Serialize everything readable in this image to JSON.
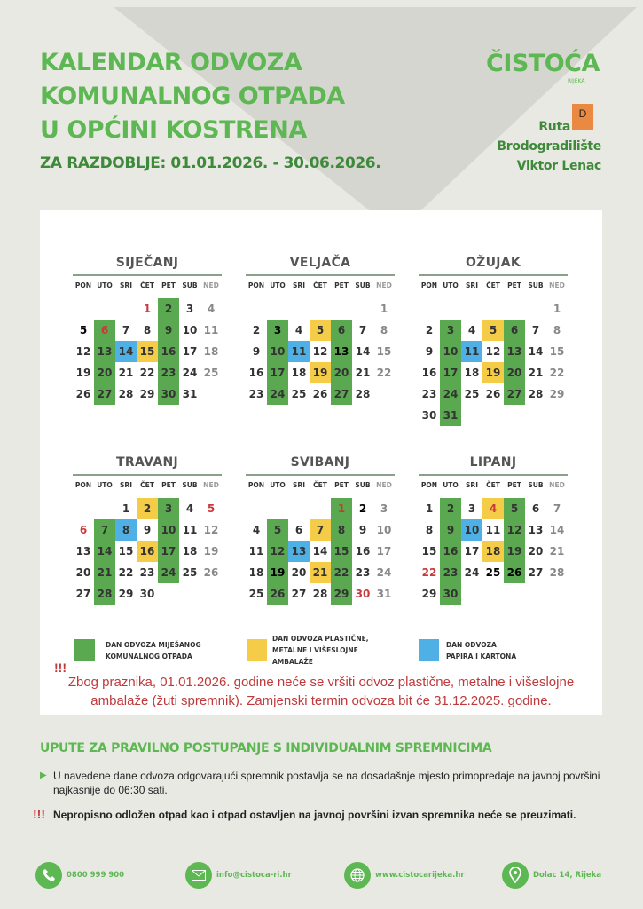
{
  "header": {
    "title_lines": [
      "KALENDAR ODVOZA",
      "KOMUNALNOG OTPADA",
      "U OPĆINI KOSTRENA"
    ],
    "period": "ZA RAZDOBLJE: 01.01.2026. - 30.06.2026.",
    "logo": "ČISTOĆA",
    "logo_sub": "RIJEKA",
    "route_label": "Ruta",
    "route_code": "D",
    "route_name_1": "Brodogradilište",
    "route_name_2": "Viktor Lenac"
  },
  "colors": {
    "green": "#5aa84f",
    "yellow": "#f5cc47",
    "blue": "#4fb0e5",
    "route": "#ea8a42",
    "title": "#5db752",
    "alert": "#c0393b"
  },
  "weekdays": [
    "PON",
    "UTO",
    "SRI",
    "ČET",
    "PET",
    "SUB",
    "NED"
  ],
  "months": [
    {
      "name": "SIJEČANJ",
      "offset": 3,
      "days": 31,
      "green": [
        2,
        9,
        16,
        23,
        30,
        6,
        13,
        20,
        27
      ],
      "yellow": [
        15
      ],
      "blue": [
        14
      ],
      "red": [
        1,
        6
      ],
      "black": [
        5
      ]
    },
    {
      "name": "VELJAČA",
      "offset": 6,
      "days": 28,
      "green": [
        3,
        10,
        17,
        24,
        6,
        13,
        20,
        27
      ],
      "yellow": [
        5,
        19
      ],
      "blue": [
        11
      ],
      "red": [],
      "black": [
        3,
        13
      ]
    },
    {
      "name": "OŽUJAK",
      "offset": 6,
      "days": 31,
      "green": [
        3,
        10,
        17,
        24,
        31,
        6,
        13,
        20,
        27
      ],
      "yellow": [
        5,
        19
      ],
      "blue": [
        11
      ],
      "red": [],
      "black": []
    },
    {
      "name": "TRAVANJ",
      "offset": 2,
      "days": 30,
      "green": [
        3,
        10,
        17,
        24,
        7,
        14,
        21,
        28
      ],
      "yellow": [
        2,
        16
      ],
      "blue": [
        8
      ],
      "red": [
        5,
        6
      ],
      "black": []
    },
    {
      "name": "SVIBANJ",
      "offset": 4,
      "days": 31,
      "green": [
        1,
        8,
        15,
        22,
        29,
        5,
        12,
        19,
        26
      ],
      "yellow": [
        7,
        21
      ],
      "blue": [
        13
      ],
      "red": [
        1,
        30
      ],
      "black": [
        2,
        19
      ]
    },
    {
      "name": "LIPANJ",
      "offset": 0,
      "days": 30,
      "green": [
        2,
        9,
        16,
        23,
        30,
        5,
        12,
        19,
        26
      ],
      "yellow": [
        4,
        18
      ],
      "blue": [
        10
      ],
      "red": [
        4,
        22
      ],
      "black": [
        25,
        26
      ]
    }
  ],
  "legend": {
    "green": [
      "DAN ODVOZA MIJEŠANOG",
      "KOMUNALNOG OTPADA"
    ],
    "yellow": [
      "DAN ODVOZA PLASTIČNE,",
      "METALNE I VIŠESLOJNE",
      "AMBALAŽE"
    ],
    "blue": [
      "DAN ODVOZA",
      "PAPIRA I KARTONA"
    ]
  },
  "notice": {
    "marker": "!!!",
    "line1": "Zbog praznika, 01.01.2026. godine neće se vršiti odvoz plastične, metalne i višeslojne",
    "line2": "ambalaže (žuti spremnik). Zamjenski termin odvoza bit će 31.12.2025. godine."
  },
  "instructions": {
    "title": "UPUTE ZA PRAVILNO POSTUPANJE S INDIVIDUALNIM SPREMNICIMA",
    "bullet_line1": "U navedene dane odvoza odgovarajući spremnik postavlja se na dosadašnje mjesto primopredaje na javnoj površini",
    "bullet_line2": "najkasnije do 06:30 sati.",
    "warning_marker": "!!!",
    "warning": "Nepropisno odložen otpad kao i otpad ostavljen na javnoj površini izvan spremnika neće se preuzimati."
  },
  "footer": {
    "phone": "0800 999 900",
    "email": "info@cistoca-ri.hr",
    "web": "www.cistocarijeka.hr",
    "address": "Dolac 14, Rijeka"
  }
}
